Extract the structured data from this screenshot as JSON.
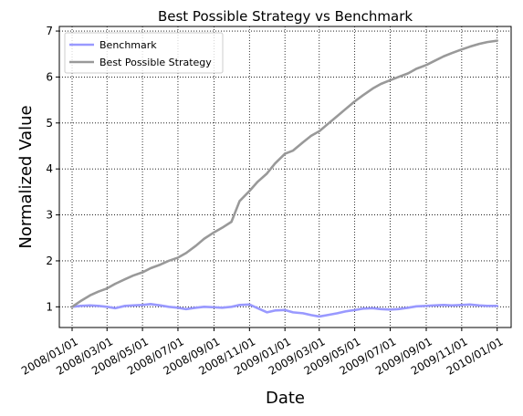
{
  "chart_data": {
    "type": "line",
    "title": "Best Possible Strategy vs Benchmark",
    "xlabel": "Date",
    "ylabel": "Normalized Value",
    "x_ticks": [
      "2008/01/01",
      "2008/03/01",
      "2008/05/01",
      "2008/07/01",
      "2008/09/01",
      "2008/11/01",
      "2009/01/01",
      "2009/03/01",
      "2009/05/01",
      "2009/07/01",
      "2009/09/01",
      "2009/11/01",
      "2010/01/01"
    ],
    "y_ticks": [
      1,
      2,
      3,
      4,
      5,
      6,
      7
    ],
    "xlim": [
      "2007/12/10",
      "2010/01/25"
    ],
    "ylim": [
      0.55,
      7.1
    ],
    "grid": true,
    "grid_style": "dotted",
    "legend": "upper-left",
    "series": [
      {
        "name": "Benchmark",
        "color": "#9999ff",
        "x": [
          "2008/01/01",
          "2008/01/15",
          "2008/02/01",
          "2008/02/15",
          "2008/03/01",
          "2008/03/15",
          "2008/04/01",
          "2008/04/15",
          "2008/05/01",
          "2008/05/15",
          "2008/06/01",
          "2008/06/15",
          "2008/07/01",
          "2008/07/15",
          "2008/08/01",
          "2008/08/15",
          "2008/09/01",
          "2008/09/15",
          "2008/10/01",
          "2008/10/15",
          "2008/11/01",
          "2008/11/15",
          "2008/12/01",
          "2008/12/15",
          "2009/01/01",
          "2009/01/15",
          "2009/02/01",
          "2009/02/15",
          "2009/03/01",
          "2009/03/15",
          "2009/04/01",
          "2009/04/15",
          "2009/05/01",
          "2009/05/15",
          "2009/06/01",
          "2009/06/15",
          "2009/07/01",
          "2009/07/15",
          "2009/08/01",
          "2009/08/15",
          "2009/09/01",
          "2009/09/15",
          "2009/10/01",
          "2009/10/15",
          "2009/11/01",
          "2009/11/15",
          "2009/12/01",
          "2009/12/15",
          "2010/01/01"
        ],
        "values": [
          1.0,
          1.02,
          1.03,
          1.02,
          1.0,
          0.97,
          1.02,
          1.03,
          1.04,
          1.06,
          1.03,
          1.0,
          0.98,
          0.95,
          0.98,
          1.0,
          0.99,
          0.98,
          1.0,
          1.04,
          1.05,
          0.97,
          0.88,
          0.92,
          0.93,
          0.88,
          0.86,
          0.82,
          0.79,
          0.82,
          0.86,
          0.9,
          0.93,
          0.96,
          0.97,
          0.95,
          0.94,
          0.95,
          0.98,
          1.01,
          1.02,
          1.03,
          1.04,
          1.03,
          1.04,
          1.05,
          1.03,
          1.02,
          1.02
        ]
      },
      {
        "name": "Best Possible Strategy",
        "color": "#999999",
        "x": [
          "2008/01/01",
          "2008/01/15",
          "2008/02/01",
          "2008/02/15",
          "2008/03/01",
          "2008/03/15",
          "2008/04/01",
          "2008/04/15",
          "2008/05/01",
          "2008/05/15",
          "2008/06/01",
          "2008/06/15",
          "2008/07/01",
          "2008/07/15",
          "2008/08/01",
          "2008/08/15",
          "2008/09/01",
          "2008/09/15",
          "2008/10/01",
          "2008/10/15",
          "2008/11/01",
          "2008/11/15",
          "2008/12/01",
          "2008/12/15",
          "2009/01/01",
          "2009/01/15",
          "2009/02/01",
          "2009/02/15",
          "2009/03/01",
          "2009/03/15",
          "2009/04/01",
          "2009/04/15",
          "2009/05/01",
          "2009/05/15",
          "2009/06/01",
          "2009/06/15",
          "2009/07/01",
          "2009/07/15",
          "2009/08/01",
          "2009/08/15",
          "2009/09/01",
          "2009/09/15",
          "2009/10/01",
          "2009/10/15",
          "2009/11/01",
          "2009/11/15",
          "2009/12/01",
          "2009/12/15",
          "2010/01/01"
        ],
        "values": [
          1.0,
          1.12,
          1.25,
          1.33,
          1.4,
          1.5,
          1.6,
          1.68,
          1.75,
          1.84,
          1.92,
          2.0,
          2.07,
          2.17,
          2.33,
          2.48,
          2.62,
          2.72,
          2.85,
          3.3,
          3.52,
          3.72,
          3.9,
          4.12,
          4.33,
          4.4,
          4.58,
          4.72,
          4.82,
          4.97,
          5.15,
          5.3,
          5.47,
          5.6,
          5.75,
          5.85,
          5.93,
          6.0,
          6.08,
          6.18,
          6.26,
          6.35,
          6.45,
          6.52,
          6.6,
          6.66,
          6.72,
          6.76,
          6.79
        ]
      }
    ]
  }
}
